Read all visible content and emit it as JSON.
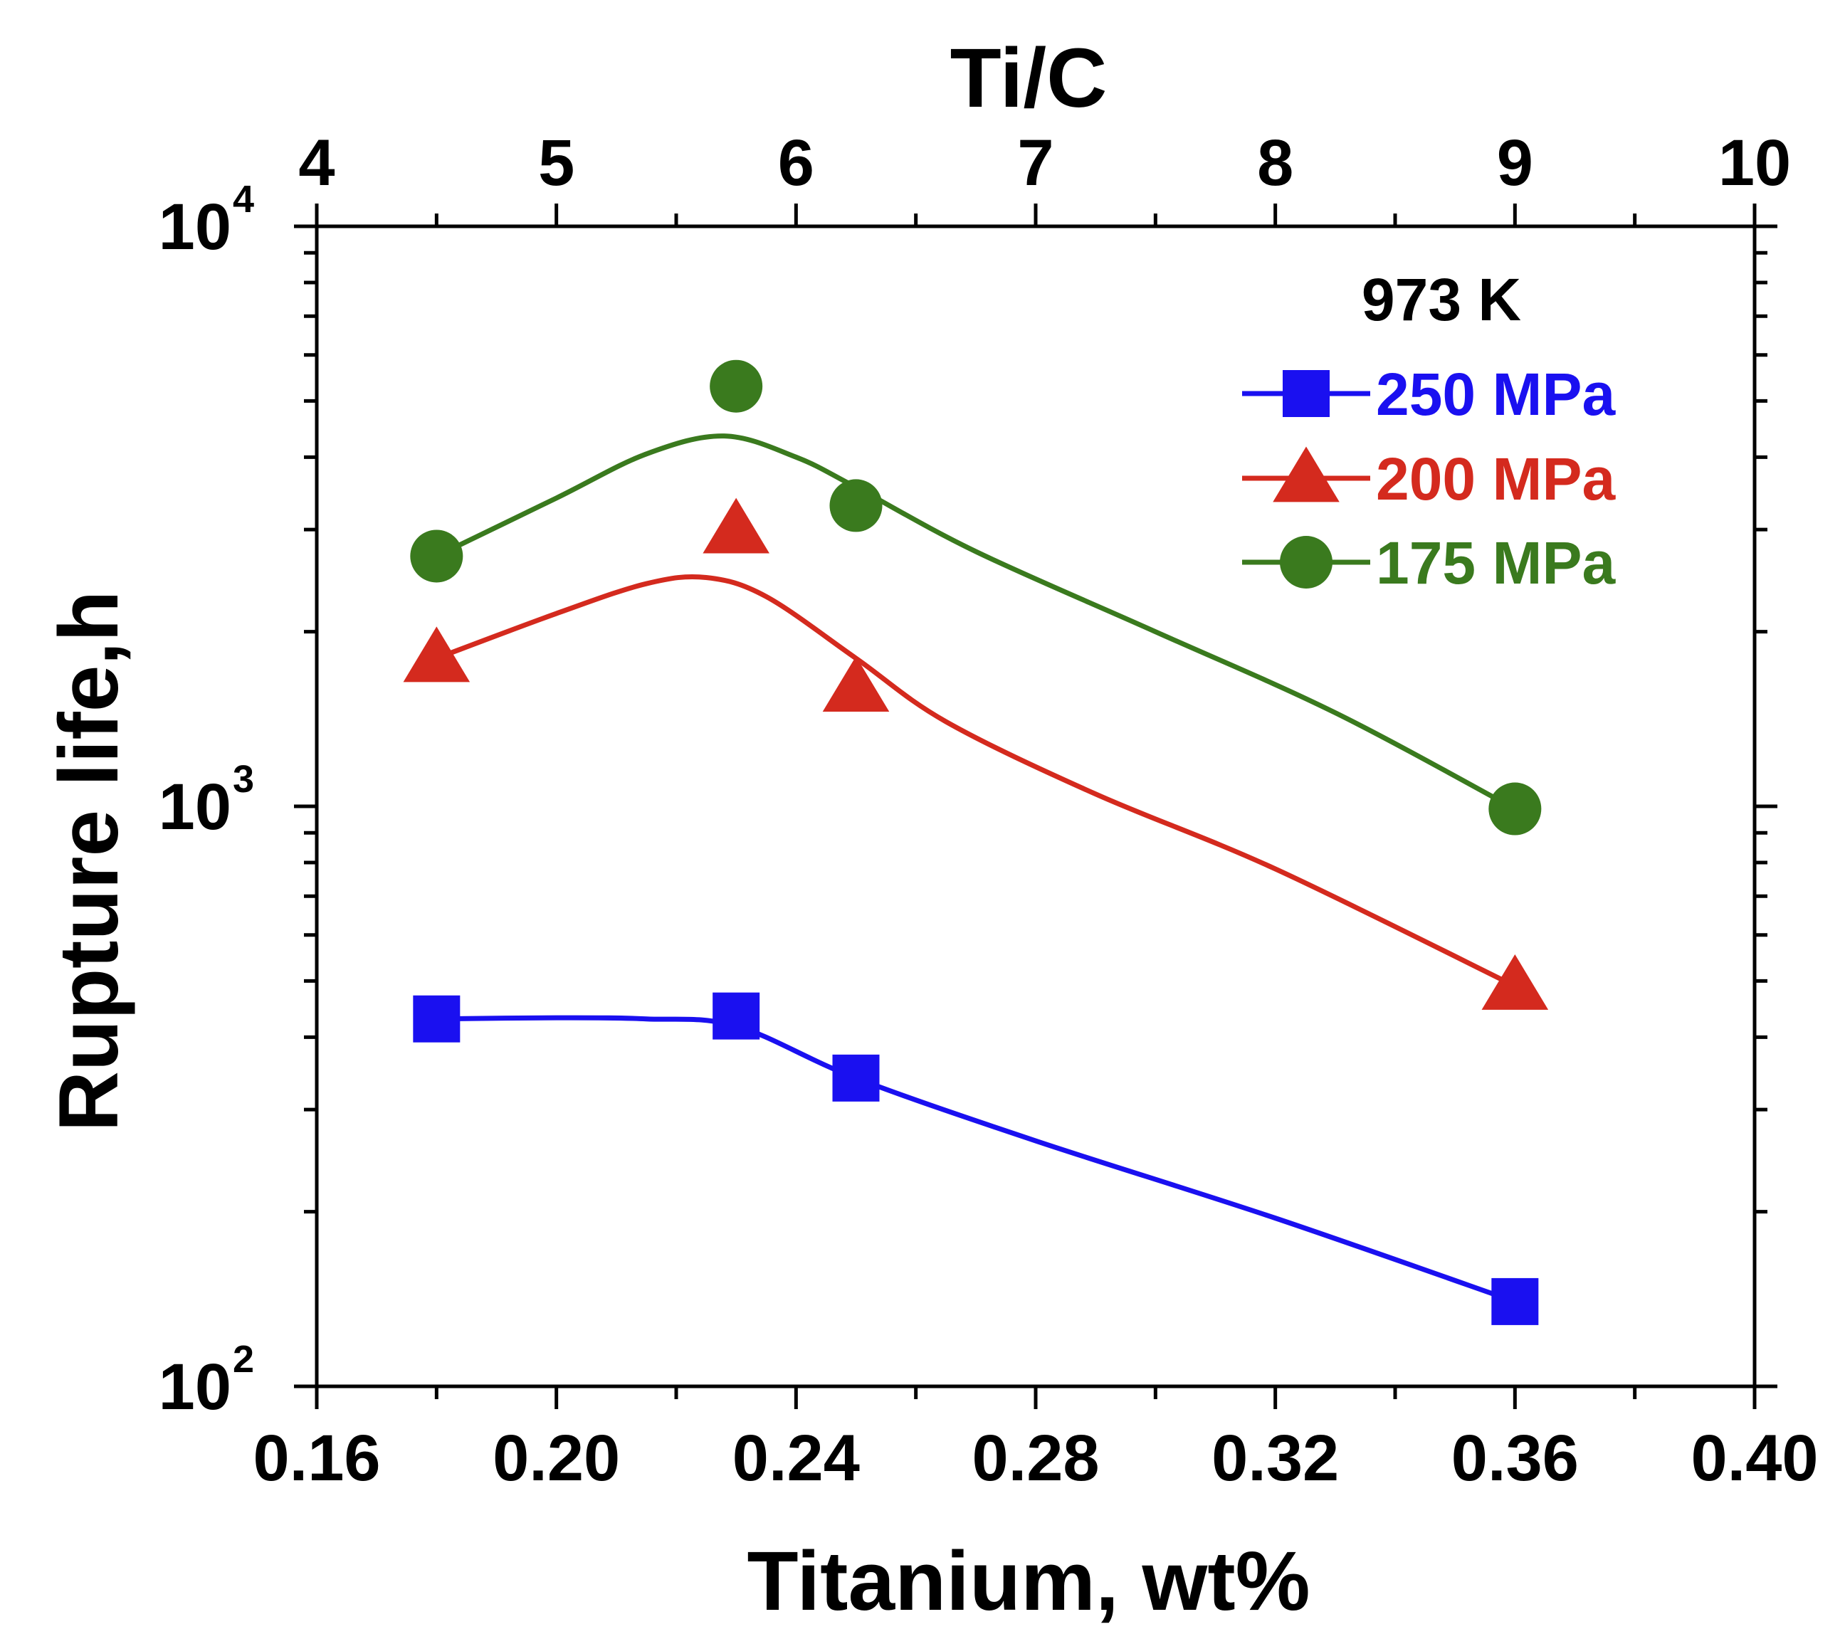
{
  "chart_data": {
    "type": "line",
    "title": "",
    "xlabel": "Titanium, wt%",
    "ylabel": "Rupture life,h",
    "top_xlabel": "Ti/C",
    "xlim": [
      0.16,
      0.4
    ],
    "ylim": [
      100,
      10000
    ],
    "yscale": "log",
    "top_xlim": [
      4,
      10
    ],
    "x_ticks": [
      "0.16",
      "0.20",
      "0.24",
      "0.28",
      "0.32",
      "0.36",
      "0.40"
    ],
    "x_tick_values": [
      0.16,
      0.2,
      0.24,
      0.28,
      0.32,
      0.36,
      0.4
    ],
    "top_x_ticks": [
      "4",
      "5",
      "6",
      "7",
      "8",
      "9",
      "10"
    ],
    "top_x_tick_values": [
      4,
      5,
      6,
      7,
      8,
      9,
      10
    ],
    "y_ticks": [
      {
        "value": 100,
        "base": "10",
        "exp": "2"
      },
      {
        "value": 1000,
        "base": "10",
        "exp": "3"
      },
      {
        "value": 10000,
        "base": "10",
        "exp": "4"
      }
    ],
    "annotation": "973 K",
    "legend_position": "top-right",
    "series": [
      {
        "name": "250 MPa",
        "color": "#1a10f0",
        "marker": "square",
        "x": [
          0.18,
          0.23,
          0.25,
          0.36
        ],
        "y": [
          430,
          435,
          340,
          140
        ],
        "curve": [
          [
            0.18,
            430
          ],
          [
            0.2,
            432
          ],
          [
            0.215,
            430
          ],
          [
            0.23,
            418
          ],
          [
            0.25,
            340
          ],
          [
            0.28,
            265
          ],
          [
            0.32,
            195
          ],
          [
            0.36,
            140
          ]
        ]
      },
      {
        "name": "200 MPa",
        "color": "#d42a1e",
        "marker": "triangle",
        "x": [
          0.18,
          0.23,
          0.25,
          0.36
        ],
        "y": [
          1800,
          3000,
          1600,
          490
        ],
        "curve": [
          [
            0.18,
            1800
          ],
          [
            0.2,
            2150
          ],
          [
            0.215,
            2420
          ],
          [
            0.225,
            2480
          ],
          [
            0.235,
            2300
          ],
          [
            0.25,
            1800
          ],
          [
            0.265,
            1400
          ],
          [
            0.29,
            1050
          ],
          [
            0.32,
            780
          ],
          [
            0.36,
            490
          ]
        ]
      },
      {
        "name": "175 MPa",
        "color": "#3a7a1e",
        "marker": "circle",
        "x": [
          0.18,
          0.23,
          0.25,
          0.36
        ],
        "y": [
          2700,
          5300,
          3300,
          990
        ],
        "curve": [
          [
            0.18,
            2700
          ],
          [
            0.2,
            3400
          ],
          [
            0.215,
            4050
          ],
          [
            0.228,
            4350
          ],
          [
            0.24,
            4000
          ],
          [
            0.25,
            3550
          ],
          [
            0.27,
            2750
          ],
          [
            0.3,
            2000
          ],
          [
            0.33,
            1450
          ],
          [
            0.36,
            990
          ]
        ]
      }
    ]
  }
}
